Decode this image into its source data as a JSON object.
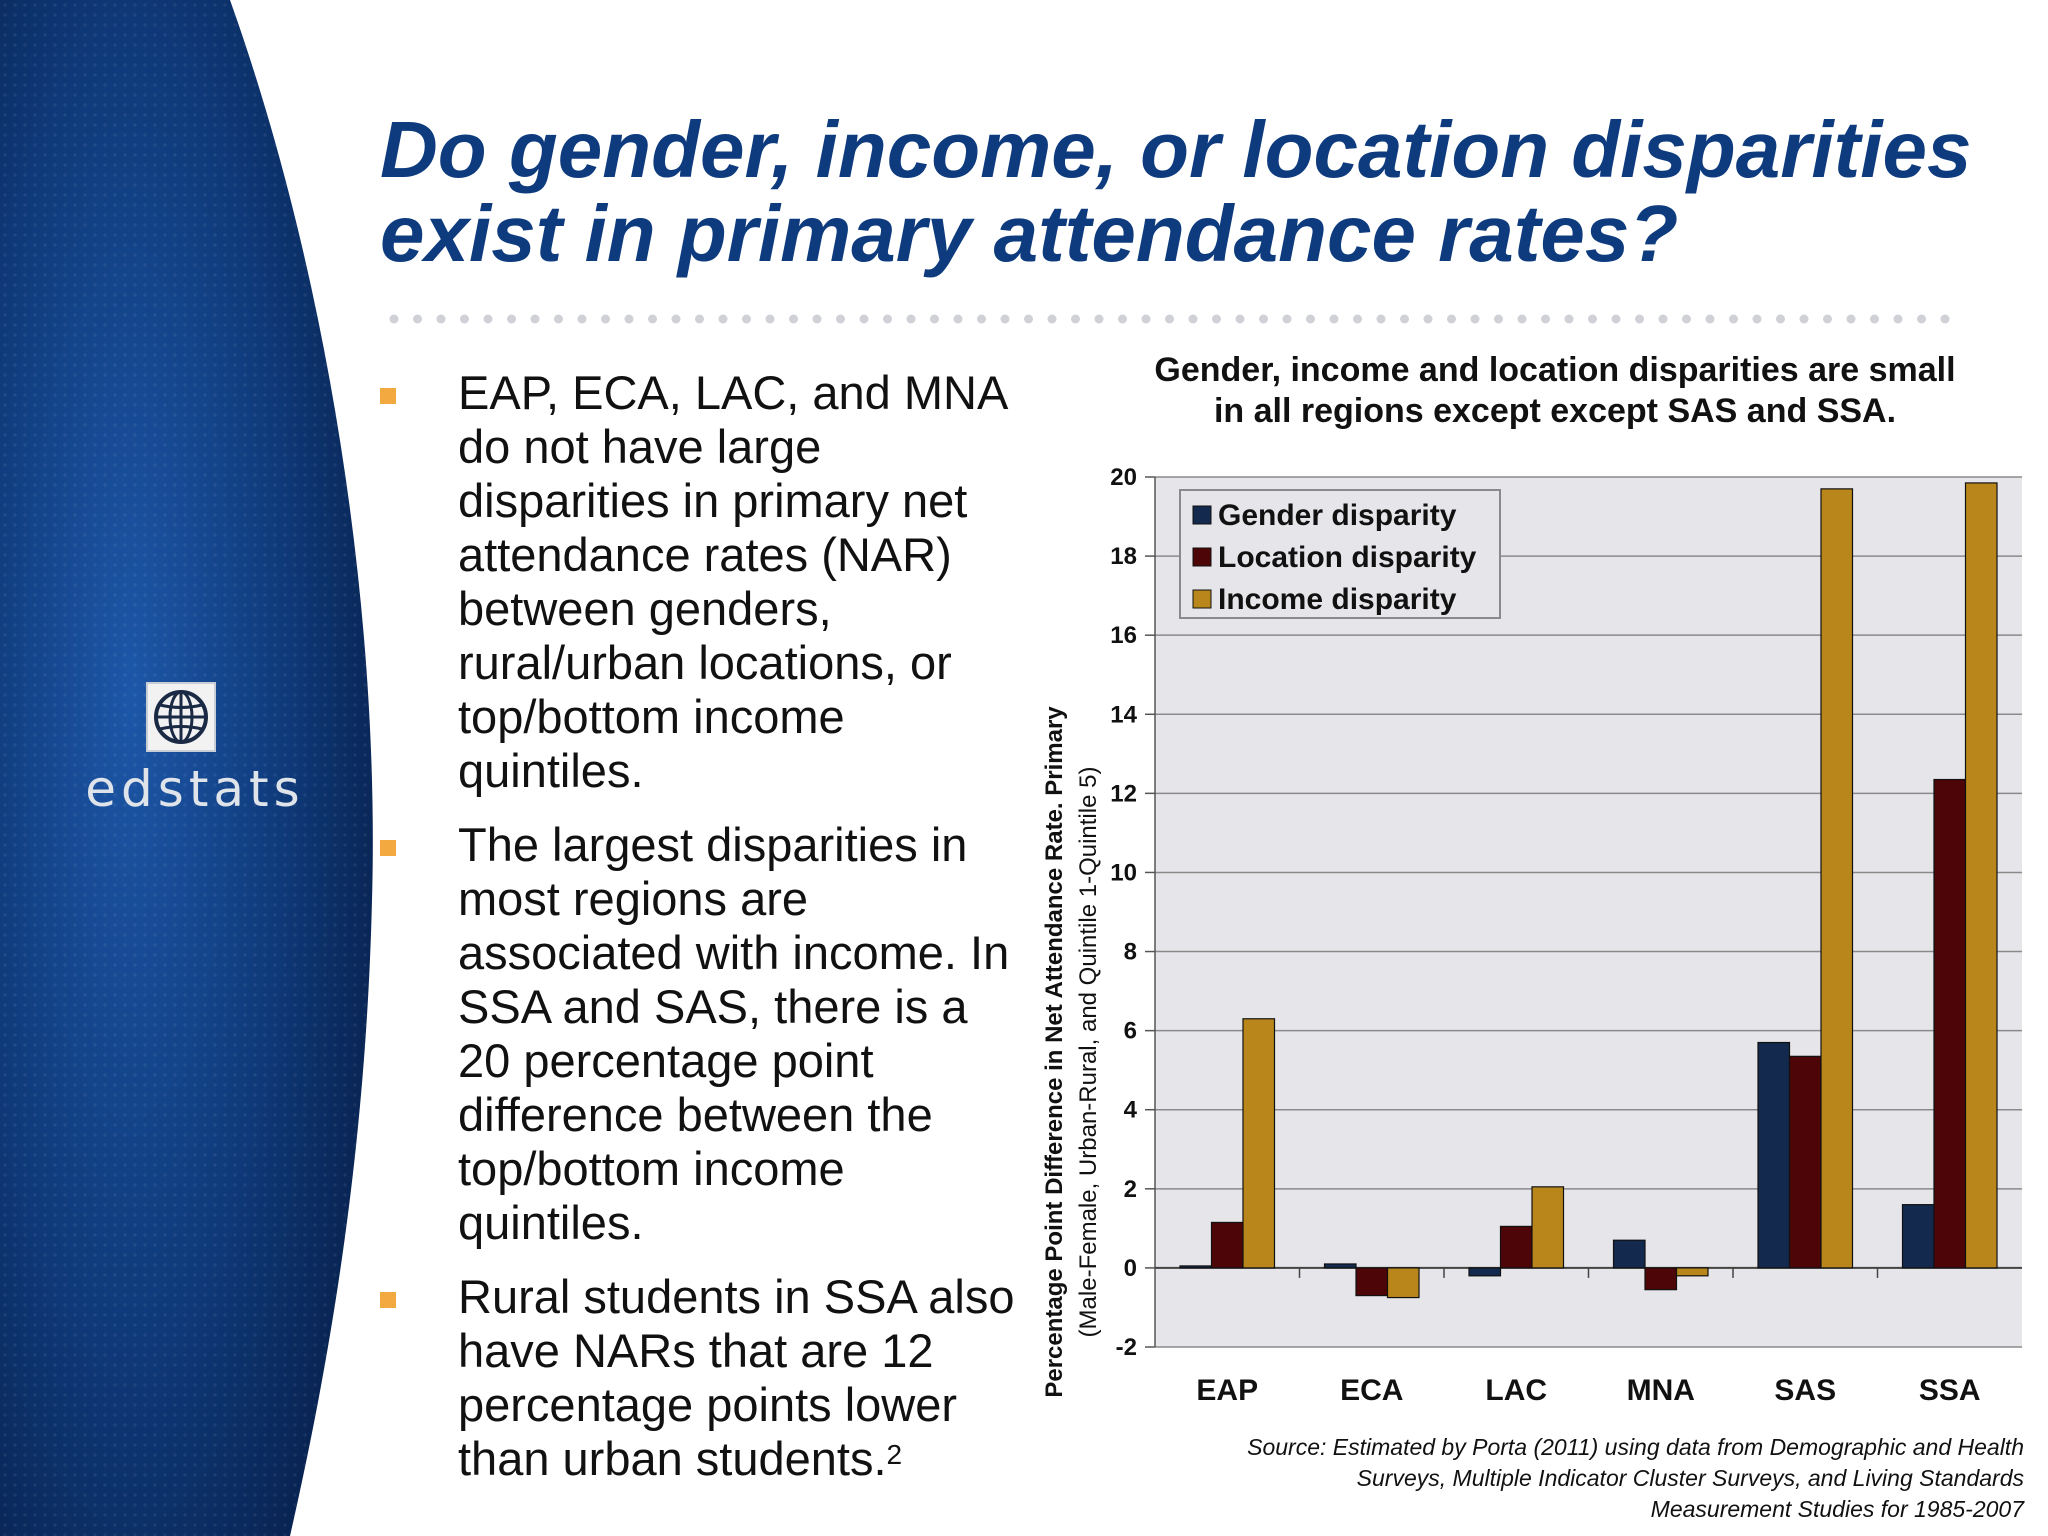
{
  "slide": {
    "title_lines": [
      "Do gender, income, or location disparities",
      "exist in primary attendance rates?"
    ],
    "logo_text": "edstats",
    "logo_icon": "globe-icon"
  },
  "bullets": [
    {
      "text": "EAP, ECA, LAC, and MNA do not have large disparities in primary net attendance rates (NAR) between genders, rural/urban locations, or top/bottom income quintiles.",
      "sup": ""
    },
    {
      "text": "The largest disparities in most regions are associated with income. In SSA and SAS, there is a 20 percentage point difference between the top/bottom income quintiles.",
      "sup": ""
    },
    {
      "text": "Rural students in SSA also have NARs that are 12 percentage points lower than urban students.",
      "sup": "2"
    }
  ],
  "colors": {
    "title": "#0e3b7e",
    "bullet": "#f4a940",
    "plot_bg": "#e6e6ea",
    "gender": "#132a4e",
    "location": "#4d0508",
    "income": "#b8861a"
  },
  "chart_data": {
    "type": "bar",
    "title_lines": [
      "Gender, income and location disparities are small",
      "in all regions except except SAS and SSA."
    ],
    "ylabel_line1": "Percentage Point Difference in Net Attendance Rate. Primary",
    "ylabel_line2": "(Male-Female,  Urban-Rural, and Quintile 1-Quintile 5)",
    "xlabel": "",
    "categories": [
      "EAP",
      "ECA",
      "LAC",
      "MNA",
      "SAS",
      "SSA"
    ],
    "series": [
      {
        "name": "Gender disparity",
        "values": [
          0.05,
          0.1,
          -0.2,
          0.7,
          5.7,
          1.6
        ]
      },
      {
        "name": "Location disparity",
        "values": [
          1.15,
          -0.7,
          1.05,
          -0.55,
          5.35,
          12.35
        ]
      },
      {
        "name": "Income disparity",
        "values": [
          6.3,
          -0.75,
          2.05,
          -0.2,
          19.7,
          19.85
        ]
      }
    ],
    "ylim": [
      -2,
      20
    ],
    "yticks": [
      -2,
      0,
      2,
      4,
      6,
      8,
      10,
      12,
      14,
      16,
      18,
      20
    ],
    "grid": true,
    "legend_position": "top-left",
    "source_lines": [
      "Source: Estimated by Porta (2011) using data from Demographic and Health",
      "Surveys, Multiple Indicator Cluster Surveys, and Living Standards",
      "Measurement Studies for 1985-2007"
    ]
  }
}
